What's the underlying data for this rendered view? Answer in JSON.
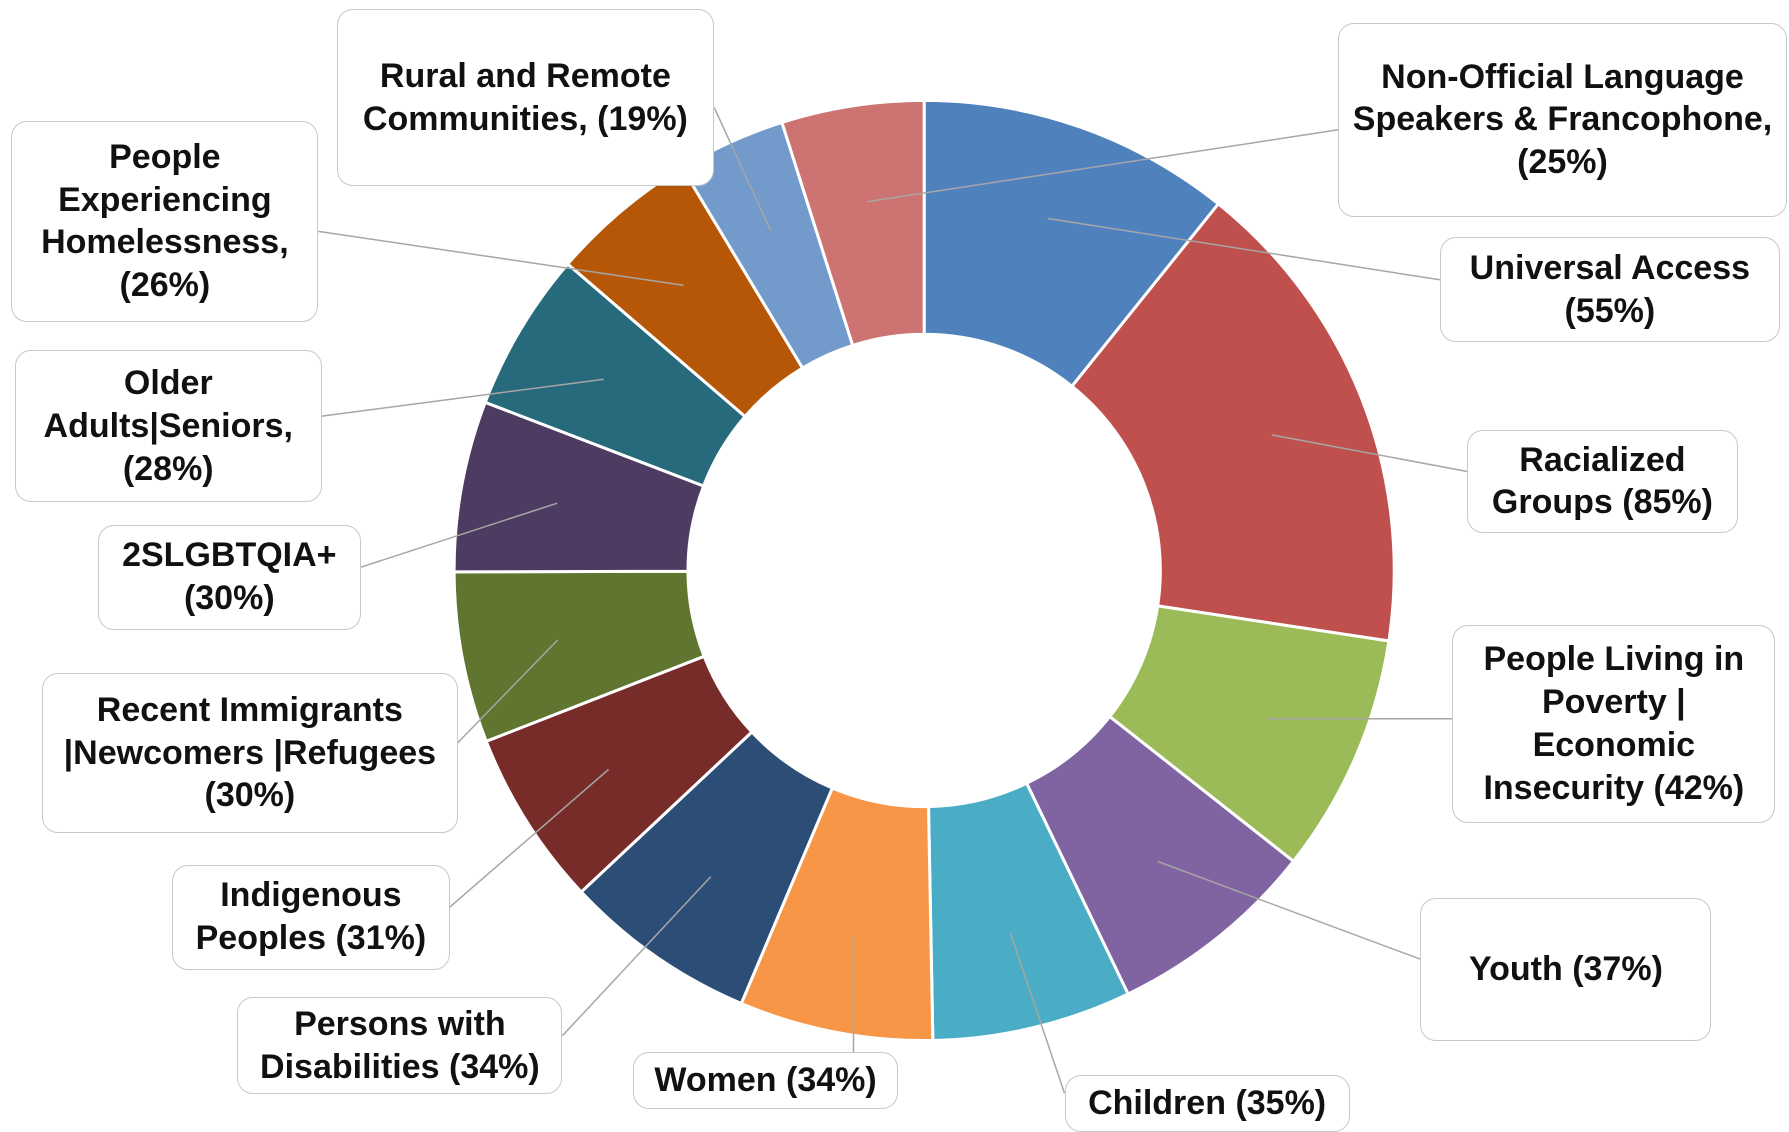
{
  "chart_data": {
    "type": "donut",
    "categories": [
      "Universal Access",
      "Racialized Groups",
      "People Living in Poverty | Economic Insecurity",
      "Youth",
      "Children",
      "Women",
      "Persons with Disabilities",
      "Indigenous Peoples",
      "Recent Immigrants |Newcomers |Refugees",
      "2SLGBTQIA+",
      "Older Adults|Seniors,",
      "People Experiencing Homelessness,",
      "Rural and Remote Communities,",
      "Non-Official Language Speakers & Francophone,"
    ],
    "values": [
      55,
      85,
      42,
      37,
      35,
      34,
      34,
      31,
      30,
      30,
      28,
      26,
      19,
      25
    ],
    "value_labels": [
      "(55%)",
      "(85%)",
      "(42%)",
      "(37%)",
      "(35%)",
      "(34%)",
      "(34%)",
      "(31%)",
      "(30%)",
      "(30%)",
      "(28%)",
      "(26%)",
      "(19%)",
      "(25%)"
    ],
    "colors": [
      "#4f81bd",
      "#c0504d",
      "#9bbb59",
      "#8064a2",
      "#4bacc6",
      "#f79646",
      "#2c4d75",
      "#772c2a",
      "#5f7530",
      "#4d3b62",
      "#276a7c",
      "#b65708",
      "#729aca",
      "#cd7371"
    ]
  }
}
